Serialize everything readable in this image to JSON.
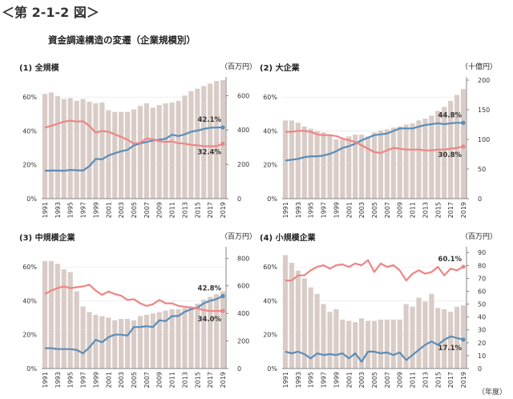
{
  "figure_label": "＜第 2-1-2 図＞",
  "main_title": "資金調達構造の変遷（企業規模別）",
  "year_unit": "（年度）",
  "colors": {
    "bar": "#d9ccc7",
    "series_blue": "#5b8db8",
    "series_red": "#ee8585",
    "axis": "#666666",
    "grid": "#dddddd"
  },
  "chart_data": [
    {
      "type": "bar",
      "title": "(1) 全規模",
      "unit_label": "（百万円）",
      "categories": [
        "1991",
        "1992",
        "1993",
        "1994",
        "1995",
        "1996",
        "1997",
        "1998",
        "1999",
        "2000",
        "2001",
        "2002",
        "2003",
        "2004",
        "2005",
        "2006",
        "2007",
        "2008",
        "2009",
        "2010",
        "2011",
        "2012",
        "2013",
        "2014",
        "2015",
        "2016",
        "2017",
        "2018",
        "2019"
      ],
      "x_tick_labels": [
        "1991",
        "1993",
        "1995",
        "1997",
        "1999",
        "2001",
        "2003",
        "2005",
        "2007",
        "2009",
        "2011",
        "2013",
        "2015",
        "2017",
        "2019"
      ],
      "left_axis": {
        "ticks": [
          "0%",
          "20%",
          "40%",
          "60%"
        ],
        "lim": [
          0,
          70
        ]
      },
      "right_axis": {
        "ticks": [
          "0",
          "200",
          "400",
          "600"
        ],
        "lim": [
          0,
          690
        ]
      },
      "bars": {
        "axis": "right",
        "values": [
          610,
          618,
          598,
          580,
          585,
          570,
          580,
          565,
          555,
          560,
          515,
          505,
          505,
          505,
          520,
          540,
          555,
          530,
          545,
          555,
          560,
          570,
          600,
          625,
          640,
          655,
          670,
          685,
          690
        ]
      },
      "series": [
        {
          "color": "blue",
          "axis": "left",
          "values": [
            16.5,
            16.6,
            16.6,
            16.5,
            17.0,
            16.8,
            16.6,
            19.2,
            23.5,
            23.2,
            25.5,
            26.8,
            28.0,
            28.8,
            31.5,
            32.6,
            33.5,
            34.4,
            34.8,
            35.4,
            37.8,
            37.0,
            38.0,
            39.5,
            40.2,
            41.2,
            41.9,
            42.0,
            42.1
          ]
        },
        {
          "color": "red",
          "axis": "left",
          "values": [
            42.0,
            43.0,
            44.2,
            45.5,
            46.0,
            45.5,
            45.8,
            43.0,
            39.0,
            40.0,
            39.5,
            38.0,
            36.5,
            34.8,
            32.5,
            33.0,
            35.5,
            35.0,
            34.0,
            33.5,
            33.8,
            32.8,
            32.5,
            31.8,
            31.5,
            31.0,
            31.0,
            31.0,
            32.4
          ]
        }
      ],
      "annotations": [
        {
          "text": "42.1%",
          "series": 0
        },
        {
          "text": "32.4%",
          "series": 1
        }
      ]
    },
    {
      "type": "bar",
      "title": "(2) 大企業",
      "unit_label": "（十億円）",
      "categories": [
        "1991",
        "1992",
        "1993",
        "1994",
        "1995",
        "1996",
        "1997",
        "1998",
        "1999",
        "2000",
        "2001",
        "2002",
        "2003",
        "2004",
        "2005",
        "2006",
        "2007",
        "2008",
        "2009",
        "2010",
        "2011",
        "2012",
        "2013",
        "2014",
        "2015",
        "2016",
        "2017",
        "2018",
        "2019"
      ],
      "x_tick_labels": [
        "1991",
        "1993",
        "1995",
        "1997",
        "1999",
        "2001",
        "2003",
        "2005",
        "2007",
        "2009",
        "2011",
        "2013",
        "2015",
        "2017",
        "2019"
      ],
      "left_axis": {
        "ticks": [
          "0%",
          "20%",
          "40%",
          "60%"
        ],
        "lim": [
          0,
          70
        ]
      },
      "right_axis": {
        "ticks": [
          "0",
          "50",
          "100",
          "150",
          "200"
        ],
        "lim": [
          0,
          200
        ]
      },
      "bars": {
        "axis": "right",
        "values": [
          132,
          132,
          128,
          122,
          118,
          114,
          112,
          108,
          100,
          100,
          105,
          108,
          108,
          105,
          112,
          115,
          117,
          120,
          122,
          125,
          127,
          132,
          135,
          140,
          148,
          155,
          165,
          175,
          185
        ]
      },
      "series": [
        {
          "color": "blue",
          "axis": "left",
          "values": [
            22.5,
            23.0,
            23.5,
            24.5,
            25.0,
            25.0,
            25.5,
            26.5,
            28.0,
            30.0,
            31.0,
            32.5,
            34.5,
            36.0,
            37.5,
            38.0,
            38.5,
            40.0,
            41.5,
            41.5,
            41.5,
            42.5,
            43.5,
            44.0,
            44.5,
            44.0,
            44.5,
            44.8,
            44.8
          ]
        },
        {
          "color": "red",
          "axis": "left",
          "values": [
            39.5,
            39.5,
            40.0,
            40.0,
            39.5,
            38.0,
            37.5,
            37.5,
            37.0,
            35.5,
            34.5,
            33.5,
            31.5,
            29.5,
            27.5,
            27.0,
            28.5,
            30.0,
            29.5,
            29.0,
            29.0,
            29.0,
            28.5,
            28.5,
            29.0,
            29.0,
            29.5,
            30.0,
            30.8
          ]
        }
      ],
      "annotations": [
        {
          "text": "44.8%",
          "series": 0
        },
        {
          "text": "30.8%",
          "series": 1
        }
      ]
    },
    {
      "type": "bar",
      "title": "(3) 中規模企業",
      "unit_label": "（百万円）",
      "categories": [
        "1991",
        "1992",
        "1993",
        "1994",
        "1995",
        "1996",
        "1997",
        "1998",
        "1999",
        "2000",
        "2001",
        "2002",
        "2003",
        "2004",
        "2005",
        "2006",
        "2007",
        "2008",
        "2009",
        "2010",
        "2011",
        "2012",
        "2013",
        "2014",
        "2015",
        "2016",
        "2017",
        "2018",
        "2019"
      ],
      "x_tick_labels": [
        "1991",
        "1993",
        "1995",
        "1997",
        "1999",
        "2001",
        "2003",
        "2005",
        "2007",
        "2009",
        "2011",
        "2013",
        "2015",
        "2017",
        "2019"
      ],
      "left_axis": {
        "ticks": [
          "0%",
          "20%",
          "40%",
          "60%"
        ],
        "lim": [
          0,
          70
        ]
      },
      "right_axis": {
        "ticks": [
          "0",
          "200",
          "400",
          "600",
          "800"
        ],
        "lim": [
          0,
          860
        ]
      },
      "bars": {
        "axis": "right",
        "values": [
          780,
          780,
          760,
          720,
          700,
          560,
          450,
          410,
          390,
          380,
          370,
          350,
          360,
          360,
          350,
          380,
          390,
          400,
          410,
          420,
          430,
          430,
          440,
          450,
          470,
          500,
          520,
          540,
          560
        ]
      },
      "series": [
        {
          "color": "blue",
          "axis": "left",
          "values": [
            12.0,
            12.0,
            11.5,
            11.5,
            11.5,
            11.0,
            9.0,
            12.5,
            17.0,
            15.5,
            18.5,
            20.0,
            20.0,
            19.5,
            24.5,
            24.5,
            25.0,
            24.5,
            28.5,
            28.0,
            31.0,
            31.0,
            33.5,
            35.0,
            36.0,
            38.5,
            40.0,
            41.0,
            42.8
          ]
        },
        {
          "color": "red",
          "axis": "left",
          "values": [
            44.0,
            46.0,
            47.5,
            48.5,
            47.5,
            48.0,
            48.5,
            49.5,
            46.0,
            43.5,
            45.5,
            44.0,
            43.0,
            40.5,
            41.0,
            38.5,
            37.0,
            38.0,
            40.5,
            38.5,
            38.5,
            37.0,
            36.5,
            36.0,
            35.5,
            34.5,
            34.0,
            34.0,
            34.0
          ]
        }
      ],
      "annotations": [
        {
          "text": "42.8%",
          "series": 0
        },
        {
          "text": "34.0%",
          "series": 1
        }
      ]
    },
    {
      "type": "bar",
      "title": "(4) 小規模企業",
      "unit_label": "（百万円）",
      "categories": [
        "1991",
        "1992",
        "1993",
        "1994",
        "1995",
        "1996",
        "1997",
        "1998",
        "1999",
        "2000",
        "2001",
        "2002",
        "2003",
        "2004",
        "2005",
        "2006",
        "2007",
        "2008",
        "2009",
        "2010",
        "2011",
        "2012",
        "2013",
        "2014",
        "2015",
        "2016",
        "2017",
        "2018",
        "2019"
      ],
      "x_tick_labels": [
        "1991",
        "1993",
        "1995",
        "1997",
        "1999",
        "2001",
        "2003",
        "2005",
        "2007",
        "2009",
        "2011",
        "2013",
        "2015",
        "2017",
        "2019"
      ],
      "left_axis": {
        "ticks": [
          "0%",
          "20%",
          "40%",
          "60%"
        ],
        "lim": [
          0,
          70
        ]
      },
      "right_axis": {
        "ticks": [
          "0",
          "10",
          "20",
          "30",
          "40",
          "50",
          "60",
          "70",
          "80",
          "90"
        ],
        "lim": [
          0,
          92
        ]
      },
      "bars": {
        "axis": "right",
        "values": [
          88,
          82,
          76,
          70,
          63,
          58,
          50,
          44,
          46,
          38,
          37,
          36,
          39,
          37,
          37,
          38,
          38,
          38,
          38,
          50,
          48,
          55,
          52,
          58,
          47,
          46,
          44,
          48,
          49
        ]
      },
      "series": [
        {
          "color": "blue",
          "axis": "left",
          "values": [
            10.0,
            9.0,
            10.0,
            8.5,
            6.0,
            9.0,
            8.0,
            8.5,
            8.0,
            9.0,
            6.0,
            9.0,
            4.0,
            10.0,
            10.0,
            9.0,
            9.5,
            8.0,
            9.5,
            5.0,
            8.0,
            11.0,
            14.0,
            16.0,
            14.0,
            17.0,
            19.0,
            18.0,
            17.1
          ]
        },
        {
          "color": "red",
          "axis": "left",
          "values": [
            52.0,
            52.0,
            55.0,
            55.0,
            58.0,
            60.0,
            61.0,
            59.0,
            61.0,
            61.5,
            60.0,
            62.0,
            61.0,
            64.0,
            57.0,
            62.0,
            60.0,
            61.0,
            58.0,
            52.0,
            56.0,
            58.0,
            56.0,
            57.0,
            60.0,
            55.0,
            59.0,
            58.0,
            60.1
          ]
        }
      ],
      "annotations": [
        {
          "text": "60.1%",
          "series": 1
        },
        {
          "text": "17.1%",
          "series": 0
        }
      ]
    }
  ]
}
